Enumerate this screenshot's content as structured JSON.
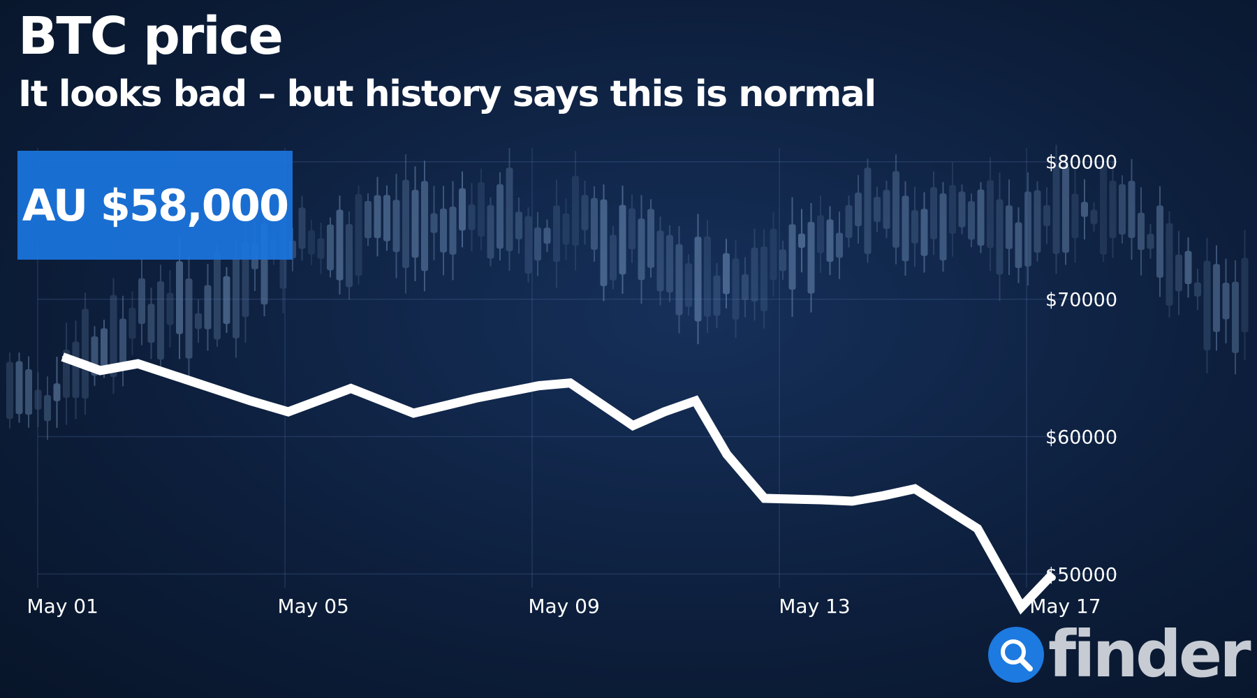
{
  "title": "BTC price",
  "subtitle": "It looks bad – but history says this is normal",
  "callout": {
    "text": "AU $58,000"
  },
  "logo": {
    "wordmark": "finder",
    "icon": "magnifier-icon",
    "color": "#1d7ae0"
  },
  "colors": {
    "background": "#0d1f3d",
    "line": "#ffffff",
    "callout": "#1b75de",
    "candles": "#8fb3dd"
  },
  "chart_data": {
    "type": "line",
    "title": "BTC price",
    "subtitle": "It looks bad – but history says this is normal",
    "xlabel": "",
    "ylabel": "",
    "grid": true,
    "x_ticks": [
      "May 01",
      "May 05",
      "May 09",
      "May 13",
      "May 17"
    ],
    "x_tick_positions": [
      1,
      5,
      9,
      13,
      17
    ],
    "y_ticks": [
      "$50000",
      "$60000",
      "$70000",
      "$80000"
    ],
    "y_tick_values": [
      50000,
      60000,
      70000,
      80000
    ],
    "xlim": [
      0,
      18.5
    ],
    "ylim": [
      49000,
      81000
    ],
    "series": [
      {
        "x": [
          1,
          1.6,
          2.2,
          3,
          4,
          4.6,
          5.6,
          6.6,
          7.6,
          8.6,
          9.1,
          10.1,
          10.6,
          11.1,
          11.6,
          12.2,
          13.1,
          13.6,
          14.1,
          14.6,
          15.6,
          16.3,
          16.8
        ],
        "y": [
          65800,
          64800,
          65300,
          64100,
          62600,
          61800,
          63500,
          61700,
          62800,
          63700,
          63900,
          60800,
          61800,
          62600,
          58700,
          55500,
          55400,
          55300,
          55700,
          56200,
          53300,
          47600,
          50000
        ]
      }
    ]
  }
}
